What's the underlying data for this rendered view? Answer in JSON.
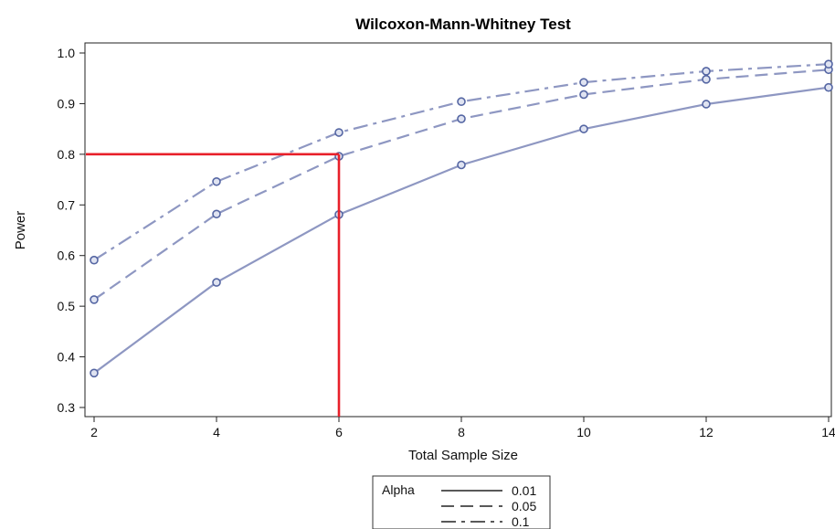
{
  "chart_data": {
    "type": "line",
    "title": "Wilcoxon-Mann-Whitney Test",
    "xlabel": "Total Sample Size",
    "ylabel": "Power",
    "x": [
      2,
      4,
      6,
      8,
      10,
      12,
      14
    ],
    "xlim": [
      2,
      14
    ],
    "ylim": [
      0.28,
      1.02
    ],
    "xticks": [
      2,
      4,
      6,
      8,
      10,
      12,
      14
    ],
    "yticks": [
      0.3,
      0.4,
      0.5,
      0.6,
      0.7,
      0.8,
      0.9,
      1.0
    ],
    "ytick_labels": [
      "0.3",
      "0.4",
      "0.5",
      "0.6",
      "0.7",
      "0.8",
      "0.9",
      "1.0"
    ],
    "grid": false,
    "legend": {
      "title": "Alpha",
      "placement": "bottom"
    },
    "series": [
      {
        "name": "0.01",
        "dash": "solid",
        "values": [
          0.368,
          0.547,
          0.681,
          0.779,
          0.85,
          0.899,
          0.932
        ]
      },
      {
        "name": "0.05",
        "dash": "dashed",
        "values": [
          0.513,
          0.682,
          0.796,
          0.87,
          0.918,
          0.948,
          0.967
        ]
      },
      {
        "name": "0.1",
        "dash": "dashdot",
        "values": [
          0.591,
          0.746,
          0.843,
          0.904,
          0.942,
          0.964,
          0.978
        ]
      }
    ],
    "reference_lines": {
      "x": 6,
      "y": 0.8,
      "color": "#e8202a"
    },
    "colors": {
      "series": "#8e97c2",
      "marker": "#5566a3",
      "reference": "#e8202a"
    }
  }
}
